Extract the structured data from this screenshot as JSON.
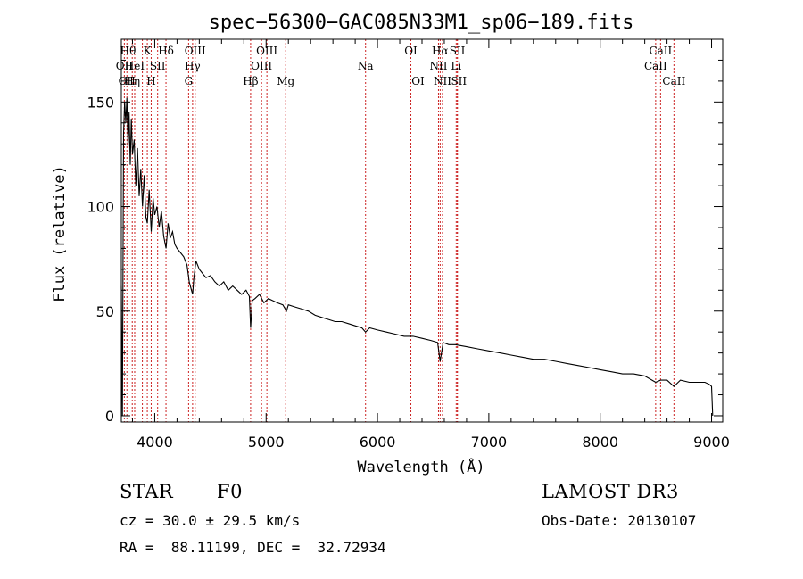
{
  "chart_data": {
    "type": "line",
    "title": "spec−56300−GAC085N33M1_sp06−189.fits",
    "xlabel": "Wavelength (Å)",
    "ylabel": "Flux (relative)",
    "xlim": [
      3700,
      9100
    ],
    "ylim": [
      -3,
      180
    ],
    "xticks": [
      4000,
      5000,
      6000,
      7000,
      8000,
      9000
    ],
    "yticks": [
      0,
      50,
      100,
      150
    ],
    "grid": false,
    "series": [
      {
        "name": "flux",
        "x": [
          3700,
          3710,
          3720,
          3730,
          3740,
          3750,
          3760,
          3770,
          3780,
          3790,
          3800,
          3815,
          3830,
          3845,
          3860,
          3875,
          3890,
          3905,
          3920,
          3933,
          3950,
          3968,
          3985,
          4000,
          4020,
          4040,
          4060,
          4080,
          4101,
          4120,
          4140,
          4160,
          4180,
          4200,
          4230,
          4260,
          4290,
          4310,
          4330,
          4340,
          4350,
          4370,
          4400,
          4430,
          4460,
          4500,
          4540,
          4580,
          4620,
          4660,
          4700,
          4740,
          4780,
          4820,
          4850,
          4861,
          4875,
          4900,
          4940,
          4980,
          5020,
          5060,
          5100,
          5150,
          5183,
          5200,
          5260,
          5320,
          5380,
          5440,
          5500,
          5560,
          5620,
          5680,
          5740,
          5800,
          5860,
          5893,
          5930,
          6000,
          6080,
          6160,
          6240,
          6320,
          6400,
          6480,
          6540,
          6563,
          6590,
          6640,
          6700,
          6800,
          6900,
          7000,
          7100,
          7200,
          7300,
          7400,
          7500,
          7600,
          7700,
          7800,
          7900,
          8000,
          8100,
          8200,
          8300,
          8400,
          8498,
          8542,
          8600,
          8662,
          8720,
          8800,
          8880,
          8940,
          8980,
          9000,
          9010
        ],
        "y": [
          62,
          0,
          135,
          150,
          140,
          152,
          128,
          145,
          120,
          142,
          125,
          132,
          110,
          128,
          105,
          118,
          100,
          115,
          95,
          92,
          108,
          88,
          104,
          96,
          100,
          90,
          98,
          86,
          80,
          92,
          85,
          88,
          82,
          80,
          78,
          76,
          72,
          64,
          60,
          58,
          65,
          74,
          70,
          68,
          66,
          67,
          64,
          62,
          64,
          60,
          62,
          60,
          58,
          60,
          57,
          42,
          55,
          56,
          58,
          54,
          56,
          55,
          54,
          53,
          50,
          53,
          52,
          51,
          50,
          48,
          47,
          46,
          45,
          45,
          44,
          43,
          42,
          40,
          42,
          41,
          40,
          39,
          38,
          38,
          37,
          36,
          35,
          26,
          35,
          34,
          34,
          33,
          32,
          31,
          30,
          29,
          28,
          27,
          27,
          26,
          25,
          24,
          23,
          22,
          21,
          20,
          20,
          19,
          16,
          17,
          17,
          14,
          17,
          16,
          16,
          16,
          15,
          14,
          0
        ]
      }
    ],
    "line_markers": [
      {
        "wl": 3727,
        "label": "OII",
        "row": 1
      },
      {
        "wl": 3750,
        "label": "OII",
        "row": 2
      },
      {
        "wl": 3760,
        "label": "Hθ",
        "row": 0
      },
      {
        "wl": 3798,
        "label": "Hη",
        "row": 2
      },
      {
        "wl": 3820,
        "label": "HeI",
        "row": 1
      },
      {
        "wl": 3889,
        "label": "",
        "row": 0
      },
      {
        "wl": 3933,
        "label": "K",
        "row": 0
      },
      {
        "wl": 3968,
        "label": "H",
        "row": 2
      },
      {
        "wl": 4026,
        "label": "SII",
        "row": 1
      },
      {
        "wl": 4101,
        "label": "Hδ",
        "row": 0
      },
      {
        "wl": 4304,
        "label": "G",
        "row": 2
      },
      {
        "wl": 4340,
        "label": "Hγ",
        "row": 1
      },
      {
        "wl": 4363,
        "label": "OIII",
        "row": 0
      },
      {
        "wl": 4861,
        "label": "Hβ",
        "row": 2
      },
      {
        "wl": 4959,
        "label": "OIII",
        "row": 1
      },
      {
        "wl": 5007,
        "label": "OIII",
        "row": 0
      },
      {
        "wl": 5176,
        "label": "Mg",
        "row": 2
      },
      {
        "wl": 5893,
        "label": "Na",
        "row": 1
      },
      {
        "wl": 6300,
        "label": "OI",
        "row": 0
      },
      {
        "wl": 6364,
        "label": "OI",
        "row": 2
      },
      {
        "wl": 6548,
        "label": "NII",
        "row": 1
      },
      {
        "wl": 6563,
        "label": "Hα",
        "row": 0
      },
      {
        "wl": 6584,
        "label": "NII",
        "row": 2
      },
      {
        "wl": 6707,
        "label": "Li",
        "row": 1
      },
      {
        "wl": 6717,
        "label": "SII",
        "row": 0
      },
      {
        "wl": 6731,
        "label": "SII",
        "row": 2
      },
      {
        "wl": 8498,
        "label": "CaII",
        "row": 1
      },
      {
        "wl": 8542,
        "label": "CaII",
        "row": 0
      },
      {
        "wl": 8662,
        "label": "CaII",
        "row": 2
      }
    ]
  },
  "info": {
    "object_class": "STAR",
    "subclass": "F0",
    "survey": "LAMOST DR3",
    "redshift": "cz = 30.0 ± 29.5 km/s",
    "obs_date": "Obs-Date: 20130107",
    "coords": "RA =  88.11199, DEC =  32.72934"
  }
}
